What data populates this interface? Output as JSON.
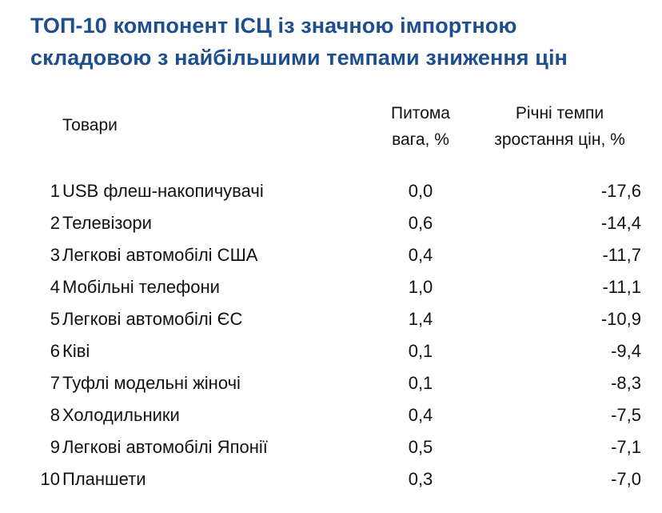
{
  "title": {
    "line1": "ТОП-10 компонент ІСЦ із значною імпортною",
    "line2": "складовою з найбільшими темпами зниження цін"
  },
  "headers": {
    "goods": "Товари",
    "weight_line1": "Питома",
    "weight_line2": "вага, %",
    "growth_line1": "Річні темпи",
    "growth_line2": "зростання цін, %"
  },
  "rows": [
    {
      "num": "1",
      "name": "USB флеш-накопичувачі",
      "weight": "0,0",
      "growth": "-17,6"
    },
    {
      "num": "2",
      "name": "Телевізори",
      "weight": "0,6",
      "growth": "-14,4"
    },
    {
      "num": "3",
      "name": "Легкові автомобілі США",
      "weight": "0,4",
      "growth": "-11,7"
    },
    {
      "num": "4",
      "name": "Мобільні телефони",
      "weight": "1,0",
      "growth": "-11,1"
    },
    {
      "num": "5",
      "name": "Легкові автомобілі ЄС",
      "weight": "1,4",
      "growth": "-10,9"
    },
    {
      "num": "6",
      "name": "Ківі",
      "weight": "0,1",
      "growth": "-9,4"
    },
    {
      "num": "7",
      "name": "Туфлі модельні жіночі",
      "weight": "0,1",
      "growth": "-8,3"
    },
    {
      "num": "8",
      "name": "Холодильники",
      "weight": "0,4",
      "growth": "-7,5"
    },
    {
      "num": "9",
      "name": "Легкові автомобілі Японії",
      "weight": "0,5",
      "growth": "-7,1"
    },
    {
      "num": "10",
      "name": "Планшети",
      "weight": "0,3",
      "growth": "-7,0"
    }
  ]
}
